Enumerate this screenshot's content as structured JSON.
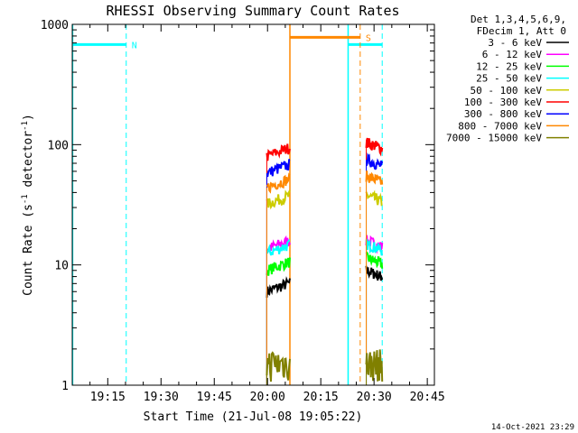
{
  "chart_data": {
    "type": "line",
    "title": "RHESSI Observing Summary Count Rates",
    "xlabel": "Start Time (21-Jul-08 19:05:22)",
    "ylabel_main": "Count Rate (s",
    "ylabel_sup1": "-1",
    "ylabel_mid": " detector",
    "ylabel_sup2": "-1",
    "ylabel_end": ")",
    "yscale": "log",
    "ylim": [
      1,
      1000
    ],
    "xlim_minutes": [
      0,
      102
    ],
    "x_tick_labels": [
      "19:15",
      "19:30",
      "19:45",
      "20:00",
      "20:15",
      "20:30",
      "20:45"
    ],
    "x_tick_minutes": [
      10,
      25,
      40,
      55,
      70,
      85,
      100
    ],
    "y_tick_labels": [
      "1",
      "10",
      "100",
      "1000"
    ],
    "y_tick_values": [
      1,
      10,
      100,
      1000
    ],
    "legend_header": [
      "Det 1,3,4,5,6,9,",
      "FDecim 1, Att 0"
    ],
    "series": [
      {
        "name": "3 - 6 keV",
        "color": "#000000",
        "levels": [
          6.0,
          9.0
        ]
      },
      {
        "name": "6 - 12 keV",
        "color": "#ff00ff",
        "levels": [
          13.5,
          16.0
        ]
      },
      {
        "name": "12 - 25 keV",
        "color": "#00ff00",
        "levels": [
          9.0,
          11.5
        ]
      },
      {
        "name": "25 - 50 keV",
        "color": "#00ffff",
        "levels": [
          12.5,
          15.0
        ]
      },
      {
        "name": "50 - 100 keV",
        "color": "#cccc00",
        "levels": [
          32.0,
          38.0
        ]
      },
      {
        "name": "100 - 300 keV",
        "color": "#ff0000",
        "levels": [
          80.0,
          105.0
        ]
      },
      {
        "name": "300 - 800 keV",
        "color": "#0000ff",
        "levels": [
          58.0,
          75.0
        ]
      },
      {
        "name": "800 - 7000 keV",
        "color": "#ff8800",
        "levels": [
          44.0,
          55.0
        ]
      },
      {
        "name": "7000 - 15000 keV",
        "color": "#808000",
        "levels": [
          1.5,
          1.5
        ]
      }
    ],
    "segments_minutes": [
      [
        54.8,
        61.3
      ],
      [
        82.8,
        87.3
      ]
    ],
    "markers": [
      {
        "label": "N",
        "color": "#00ffff",
        "solid_minute": 0.1,
        "dashed_minute": 15.2,
        "end_minute": 85.0,
        "bar_start": 0.1,
        "bar_end": 15.2,
        "bar_value": 680,
        "resume_minute": 77.7,
        "resume_end": 87.3
      },
      {
        "label": "S",
        "color": "#ff8800",
        "solid_minute": 61.3,
        "dashed_minute": 81.1,
        "bar_start": 61.3,
        "bar_end": 81.1,
        "bar_value": 780
      }
    ],
    "timestamp": "14-Oct-2021 23:29"
  }
}
